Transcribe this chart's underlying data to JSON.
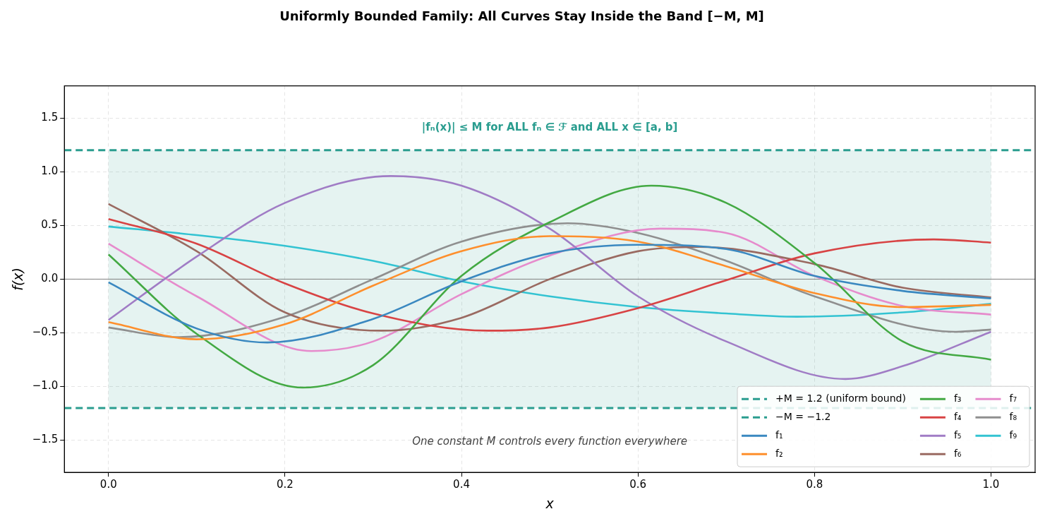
{
  "chart_data": {
    "type": "line",
    "title": "Uniformly Bounded Family: All Curves Stay Inside the Band [−M, M]",
    "xlabel": "x",
    "ylabel": "f(x)",
    "xlim": [
      -0.05,
      1.05
    ],
    "ylim": [
      -1.8,
      1.8
    ],
    "xticks": [
      {
        "value": 0,
        "label": "0.0"
      },
      {
        "value": 0.2,
        "label": "0.2"
      },
      {
        "value": 0.4,
        "label": "0.4"
      },
      {
        "value": 0.6,
        "label": "0.6"
      },
      {
        "value": 0.8,
        "label": "0.8"
      },
      {
        "value": 1,
        "label": "1.0"
      }
    ],
    "yticks": [
      {
        "value": -1.5,
        "label": "−1.5"
      },
      {
        "value": -1,
        "label": "−1.0"
      },
      {
        "value": -0.5,
        "label": "−0.5"
      },
      {
        "value": 0,
        "label": "0.0"
      },
      {
        "value": 0.5,
        "label": "0.5"
      },
      {
        "value": 1,
        "label": "1.0"
      },
      {
        "value": 1.5,
        "label": "1.5"
      }
    ],
    "grid": true,
    "legend": "bottom right",
    "marker": "none",
    "line_style": "solid",
    "series": [
      {
        "name": "f₁",
        "color": "#3a88c0",
        "x": [
          0,
          0.1,
          0.18,
          0.3,
          0.4,
          0.5,
          0.6,
          0.7,
          0.8,
          0.9,
          1
        ],
        "values": [
          -0.03,
          -0.46,
          -0.59,
          -0.37,
          -0.02,
          0.24,
          0.32,
          0.28,
          0.03,
          -0.11,
          -0.18
        ]
      },
      {
        "name": "f₂",
        "color": "#fe8f2c",
        "x": [
          0,
          0.1,
          0.2,
          0.3,
          0.4,
          0.5,
          0.6,
          0.7,
          0.8,
          0.9,
          1
        ],
        "values": [
          -0.4,
          -0.56,
          -0.42,
          -0.06,
          0.26,
          0.4,
          0.35,
          0.12,
          -0.13,
          -0.26,
          -0.24
        ]
      },
      {
        "name": "f₃",
        "color": "#43a943",
        "x": [
          0,
          0.1,
          0.22,
          0.3,
          0.4,
          0.5,
          0.615,
          0.7,
          0.8,
          0.9,
          1
        ],
        "values": [
          0.23,
          -0.51,
          -1.01,
          -0.8,
          0.03,
          0.53,
          0.87,
          0.71,
          0.15,
          -0.58,
          -0.75
        ]
      },
      {
        "name": "f₄",
        "color": "#d84344",
        "x": [
          0,
          0.1,
          0.2,
          0.3,
          0.43,
          0.5,
          0.6,
          0.7,
          0.8,
          0.935,
          1
        ],
        "values": [
          0.56,
          0.33,
          -0.04,
          -0.32,
          -0.48,
          -0.45,
          -0.27,
          -0.01,
          0.24,
          0.37,
          0.34
        ]
      },
      {
        "name": "f₅",
        "color": "#a07cc5",
        "x": [
          0,
          0.1,
          0.2,
          0.32,
          0.4,
          0.5,
          0.6,
          0.7,
          0.835,
          0.9,
          1
        ],
        "values": [
          -0.38,
          0.21,
          0.71,
          0.96,
          0.87,
          0.47,
          -0.16,
          -0.58,
          -0.93,
          -0.81,
          -0.49
        ]
      },
      {
        "name": "f₆",
        "color": "#9a6a61",
        "x": [
          0,
          0.1,
          0.2,
          0.31,
          0.4,
          0.5,
          0.6,
          0.67,
          0.8,
          0.9,
          1
        ],
        "values": [
          0.7,
          0.26,
          -0.31,
          -0.48,
          -0.36,
          0,
          0.26,
          0.3,
          0.14,
          -0.08,
          -0.17
        ]
      },
      {
        "name": "f₇",
        "color": "#e68bcc",
        "x": [
          0,
          0.1,
          0.23,
          0.3,
          0.4,
          0.5,
          0.625,
          0.7,
          0.8,
          0.9,
          1
        ],
        "values": [
          0.33,
          -0.16,
          -0.67,
          -0.58,
          -0.14,
          0.22,
          0.47,
          0.43,
          0.03,
          -0.25,
          -0.33
        ]
      },
      {
        "name": "f₈",
        "color": "#8f8f8f",
        "x": [
          0,
          0.08,
          0.2,
          0.3,
          0.4,
          0.52,
          0.6,
          0.7,
          0.8,
          0.96,
          1
        ],
        "values": [
          -0.45,
          -0.54,
          -0.35,
          0,
          0.35,
          0.52,
          0.43,
          0.17,
          -0.16,
          -0.49,
          -0.47
        ]
      },
      {
        "name": "f₉",
        "color": "#33c3d2",
        "x": [
          0,
          0.1,
          0.2,
          0.3,
          0.4,
          0.5,
          0.6,
          0.7,
          0.78,
          0.9,
          1
        ],
        "values": [
          0.49,
          0.41,
          0.31,
          0.17,
          -0.02,
          -0.16,
          -0.26,
          -0.32,
          -0.35,
          -0.31,
          -0.23
        ]
      }
    ],
    "ref_lines": [
      {
        "axis": "y",
        "value": 1.2,
        "label": "+M = 1.2 (uniform bound)",
        "color": "#2a9d8f",
        "line_style": "dashed"
      },
      {
        "axis": "y",
        "value": -1.2,
        "label": "−M = −1.2",
        "color": "#2a9d8f",
        "line_style": "dashed"
      },
      {
        "axis": "y",
        "value": 0,
        "color": "#808080",
        "line_style": "solid"
      }
    ],
    "bands": [
      {
        "axis": "y",
        "from": -1.2,
        "to": 1.2,
        "color": "#2a9d8f"
      }
    ],
    "annotations": [
      "|fₙ(x)| ≤ M for ALL fₙ ∈ ℱ and ALL x ∈ [a, b]",
      "One constant M controls every function everywhere"
    ]
  }
}
